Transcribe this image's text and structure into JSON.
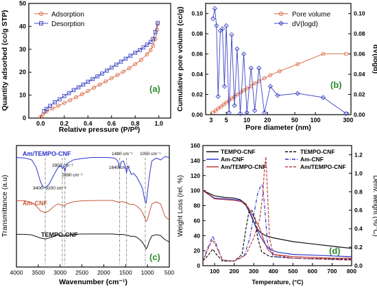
{
  "chart_data": [
    {
      "panel": "(a)",
      "type": "line",
      "xlabel": "Relative pressure (P/P⁰)",
      "ylabel": "Quantity adsorbed (cc/g STP)",
      "xlim": [
        -0.1,
        1.1
      ],
      "ylim": [
        0,
        50
      ],
      "xticks": [
        "0.0",
        "0.2",
        "0.4",
        "0.6",
        "0.8",
        "1.0"
      ],
      "yticks": [
        "0",
        "10",
        "20",
        "30",
        "40",
        "50"
      ],
      "grid": false,
      "legend": "top-left",
      "series": [
        {
          "name": "Adsorption",
          "color": "#d9633a",
          "marker": "circle",
          "x": [
            0.0,
            0.02,
            0.05,
            0.1,
            0.15,
            0.2,
            0.25,
            0.3,
            0.35,
            0.4,
            0.45,
            0.5,
            0.55,
            0.6,
            0.65,
            0.7,
            0.75,
            0.8,
            0.85,
            0.9,
            0.93,
            0.95,
            0.97,
            0.985,
            0.99
          ],
          "y": [
            0.5,
            1.5,
            2.8,
            4.2,
            5.4,
            6.6,
            7.8,
            9.1,
            10.4,
            11.8,
            13.2,
            14.6,
            16.0,
            17.4,
            18.8,
            20.2,
            21.8,
            23.5,
            25.4,
            27.8,
            29.6,
            31.5,
            34.5,
            38.5,
            41.0
          ]
        },
        {
          "name": "Desorption",
          "color": "#3b45c4",
          "marker": "square",
          "x": [
            0.99,
            0.97,
            0.95,
            0.93,
            0.9,
            0.87,
            0.84,
            0.8,
            0.76,
            0.72,
            0.68,
            0.64,
            0.6,
            0.56,
            0.52,
            0.48,
            0.44,
            0.4,
            0.36,
            0.32,
            0.28,
            0.24,
            0.2,
            0.16,
            0.12,
            0.08,
            0.05,
            0.03
          ],
          "y": [
            41.5,
            37.5,
            34.5,
            33.2,
            32.0,
            30.8,
            29.7,
            28.5,
            27.2,
            25.9,
            24.6,
            23.3,
            22.0,
            20.7,
            19.4,
            18.2,
            17.0,
            15.8,
            14.6,
            13.4,
            12.2,
            10.9,
            9.6,
            8.2,
            6.9,
            5.3,
            4.0,
            3.0
          ]
        }
      ],
      "label": "(a)"
    },
    {
      "panel": "(b)",
      "type": "line",
      "xscale": "log",
      "xlabel": "Pore diameter (nm)",
      "ylabel": "Cumulative pore volume (cc/g)",
      "y2label": "dV(logd)",
      "xlim": [
        2.5,
        330
      ],
      "ylim": [
        0,
        0.11
      ],
      "y2lim": [
        0,
        0.11
      ],
      "xticks": [
        "3",
        "5",
        "10",
        "20",
        "50",
        "100",
        "300"
      ],
      "yticks": [
        "0.00",
        "0.02",
        "0.04",
        "0.06",
        "0.08",
        "0.10"
      ],
      "y2ticks": [
        "0.00",
        "0.02",
        "0.04",
        "0.06",
        "0.08",
        "0.10"
      ],
      "legend": "top-right",
      "series": [
        {
          "name": "Pore volume",
          "axis": "left",
          "color": "#d9633a",
          "marker": "circle",
          "x": [
            3.2,
            3.5,
            3.8,
            4.2,
            4.6,
            5.0,
            5.5,
            6.0,
            6.6,
            7.3,
            8.1,
            9.0,
            10.0,
            11.5,
            13.0,
            15.0,
            18.0,
            22.0,
            30.0,
            55.0,
            130.0,
            280.0
          ],
          "y": [
            0.002,
            0.004,
            0.006,
            0.008,
            0.01,
            0.012,
            0.014,
            0.016,
            0.018,
            0.02,
            0.022,
            0.024,
            0.026,
            0.028,
            0.031,
            0.033,
            0.036,
            0.039,
            0.043,
            0.05,
            0.06,
            0.06
          ]
        },
        {
          "name": "dV(logd)",
          "axis": "right",
          "color": "#3b45c4",
          "marker": "diamond",
          "x": [
            3.2,
            3.4,
            3.6,
            3.8,
            4.1,
            4.4,
            4.7,
            5.0,
            5.5,
            6.0,
            6.6,
            7.2,
            8.0,
            9.0,
            10.0,
            11.5,
            13.0,
            15.0,
            18.0,
            22.0,
            28.0,
            55.0,
            130.0,
            280.0
          ],
          "y": [
            0.095,
            0.105,
            0.088,
            0.018,
            0.083,
            0.085,
            0.028,
            0.088,
            0.002,
            0.079,
            0.009,
            0.065,
            0.001,
            0.06,
            0.002,
            0.046,
            0.004,
            0.046,
            0.002,
            0.028,
            0.019,
            0.021,
            0.017,
            0.001
          ]
        }
      ],
      "label": "(b)"
    },
    {
      "panel": "(c)",
      "type": "line",
      "xlabel": "Wavenumber (cm⁻¹)",
      "ylabel": "Transmittance (a.u)",
      "xlim": [
        4000,
        500
      ],
      "xticks": [
        "4000",
        "3500",
        "3000",
        "2500",
        "2000",
        "1500",
        "1000",
        "500"
      ],
      "series": [
        {
          "name": "Am/TEMPO-CNF",
          "color": "#2a35c9",
          "x": [
            4000,
            3800,
            3650,
            3550,
            3450,
            3400,
            3340,
            3250,
            3150,
            3050,
            2980,
            2950,
            2920,
            2890,
            2850,
            2700,
            2500,
            2300,
            2100,
            1900,
            1750,
            1680,
            1640,
            1600,
            1550,
            1500,
            1480,
            1450,
            1420,
            1370,
            1320,
            1250,
            1160,
            1110,
            1080,
            1050,
            1030,
            1000,
            960,
            900,
            800,
            700,
            600,
            500
          ],
          "y": [
            0.95,
            0.94,
            0.9,
            0.75,
            0.45,
            0.35,
            0.32,
            0.4,
            0.58,
            0.74,
            0.78,
            0.72,
            0.76,
            0.66,
            0.82,
            0.9,
            0.93,
            0.95,
            0.95,
            0.95,
            0.94,
            0.88,
            0.72,
            0.86,
            0.88,
            0.74,
            0.63,
            0.78,
            0.7,
            0.6,
            0.62,
            0.55,
            0.4,
            0.3,
            0.15,
            0.02,
            0.0,
            0.22,
            0.55,
            0.88,
            0.94,
            0.9,
            0.97,
            0.95
          ]
        },
        {
          "name": "Am-CNF",
          "color": "#c8583c",
          "x": [
            4000,
            3800,
            3650,
            3550,
            3450,
            3340,
            3250,
            3150,
            3050,
            2950,
            2900,
            2850,
            2700,
            2500,
            2100,
            1800,
            1640,
            1600,
            1500,
            1430,
            1370,
            1320,
            1250,
            1160,
            1110,
            1060,
            1030,
            1000,
            960,
            900,
            800,
            700,
            600,
            500
          ],
          "y": [
            0.95,
            0.95,
            0.9,
            0.8,
            0.66,
            0.6,
            0.66,
            0.78,
            0.86,
            0.82,
            0.8,
            0.86,
            0.92,
            0.95,
            0.96,
            0.96,
            0.9,
            0.93,
            0.9,
            0.86,
            0.84,
            0.85,
            0.8,
            0.7,
            0.6,
            0.45,
            0.35,
            0.4,
            0.6,
            0.86,
            0.92,
            0.86,
            0.5,
            0.38
          ]
        },
        {
          "name": "TEMPO-CNF",
          "color": "#111111",
          "x": [
            4000,
            3800,
            3650,
            3550,
            3450,
            3340,
            3250,
            3150,
            3050,
            2950,
            2900,
            2850,
            2700,
            2500,
            2100,
            1800,
            1640,
            1600,
            1500,
            1430,
            1370,
            1320,
            1250,
            1160,
            1110,
            1060,
            1030,
            1000,
            960,
            900,
            800,
            700,
            600,
            500
          ],
          "y": [
            0.97,
            0.97,
            0.95,
            0.9,
            0.85,
            0.82,
            0.85,
            0.9,
            0.95,
            0.92,
            0.9,
            0.94,
            0.97,
            0.98,
            0.98,
            0.98,
            0.96,
            0.97,
            0.95,
            0.93,
            0.9,
            0.91,
            0.88,
            0.78,
            0.7,
            0.58,
            0.5,
            0.56,
            0.75,
            0.92,
            0.96,
            0.93,
            0.8,
            0.72
          ]
        }
      ],
      "annotations": [
        "1480 cm⁻¹",
        "1050 cm⁻¹",
        "2950 cm⁻¹",
        "2890 cm⁻¹",
        "1640 cm⁻¹",
        "3400- 3200 cm⁻¹"
      ],
      "dashed_lines": [
        3340,
        2950,
        2890,
        1640,
        1480,
        1050
      ],
      "label": "(c)"
    },
    {
      "panel": "(d)",
      "type": "line",
      "xlabel": "Temperature, (°C)",
      "ylabel": "Weight Loss (rel. %)",
      "y2label": "Deriv. weight (%/°C)",
      "xlim": [
        40,
        800
      ],
      "ylim": [
        0,
        160
      ],
      "y2lim": [
        0,
        1.3
      ],
      "xticks": [
        "100",
        "200",
        "300",
        "400",
        "500",
        "600",
        "700",
        "800"
      ],
      "yticks": [
        "0",
        "20",
        "40",
        "60",
        "80",
        "100",
        "120",
        "140",
        "160"
      ],
      "y2ticks": [
        "0.0",
        "0.2",
        "0.4",
        "0.6",
        "0.8",
        "1.0",
        "1.2"
      ],
      "legend": "top",
      "series": [
        {
          "name": "TEMPO-CNF",
          "axis": "left",
          "color": "#111111",
          "dash": "solid",
          "x": [
            40,
            100,
            150,
            200,
            230,
            260,
            290,
            310,
            330,
            360,
            400,
            500,
            600,
            700,
            800
          ],
          "y": [
            100,
            93,
            91,
            90,
            88,
            82,
            65,
            52,
            45,
            40,
            37,
            32,
            29,
            26,
            23
          ]
        },
        {
          "name": "Am-CNF",
          "axis": "left",
          "color": "#2a35c9",
          "dash": "solid",
          "x": [
            40,
            100,
            150,
            200,
            230,
            260,
            280,
            300,
            320,
            340,
            360,
            380,
            420,
            500,
            600,
            700,
            800
          ],
          "y": [
            100,
            90,
            89,
            88,
            87,
            80,
            70,
            58,
            46,
            36,
            28,
            22,
            18,
            15,
            14,
            13,
            12
          ]
        },
        {
          "name": "Am/TEMPO-CNF",
          "axis": "left",
          "color": "#c23a3a",
          "dash": "solid",
          "x": [
            40,
            100,
            150,
            200,
            240,
            270,
            300,
            330,
            350,
            370,
            400,
            500,
            600,
            700,
            800
          ],
          "y": [
            100,
            89,
            88,
            87,
            85,
            78,
            65,
            50,
            35,
            22,
            15,
            12,
            11,
            10,
            10
          ]
        },
        {
          "name": "TEMPO-CNF",
          "axis": "right",
          "color": "#111111",
          "dash": "dashed",
          "x": [
            40,
            70,
            90,
            110,
            140,
            200,
            240,
            260,
            275,
            290,
            305,
            320,
            340,
            380,
            500,
            800
          ],
          "y": [
            0.05,
            0.12,
            0.18,
            0.12,
            0.05,
            0.05,
            0.12,
            0.4,
            0.58,
            0.6,
            0.52,
            0.3,
            0.15,
            0.1,
            0.08,
            0.07
          ]
        },
        {
          "name": "Am-CNF",
          "axis": "right",
          "color": "#2a35c9",
          "dash": "dashdot",
          "x": [
            40,
            70,
            90,
            110,
            140,
            200,
            250,
            280,
            300,
            320,
            335,
            345,
            355,
            370,
            400,
            500,
            800
          ],
          "y": [
            0.05,
            0.22,
            0.32,
            0.22,
            0.06,
            0.05,
            0.1,
            0.3,
            0.55,
            0.78,
            0.86,
            0.88,
            0.65,
            0.25,
            0.1,
            0.08,
            0.06
          ]
        },
        {
          "name": "Am/TEMPO-CNF",
          "axis": "right",
          "color": "#c23a3a",
          "dash": "dashed",
          "x": [
            40,
            70,
            90,
            110,
            140,
            200,
            260,
            300,
            330,
            345,
            355,
            362,
            370,
            380,
            400,
            500,
            800
          ],
          "y": [
            0.05,
            0.2,
            0.28,
            0.2,
            0.06,
            0.05,
            0.12,
            0.3,
            0.5,
            0.75,
            1.05,
            1.18,
            0.8,
            0.3,
            0.12,
            0.08,
            0.06
          ]
        }
      ],
      "label": "(d)"
    }
  ]
}
